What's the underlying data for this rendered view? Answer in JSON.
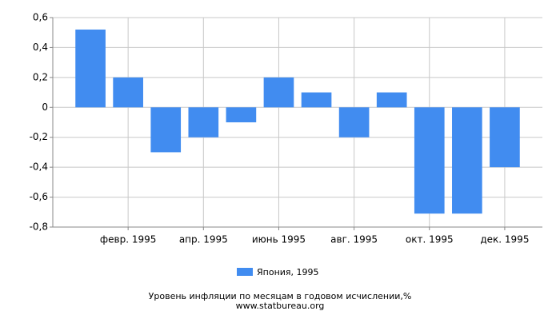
{
  "chart_data": {
    "type": "bar",
    "title": "Уровень инфляции по месяцам в годовом исчислении,%",
    "source": "www.statbureau.org",
    "categories": [
      null,
      "февр. 1995",
      null,
      "апр. 1995",
      null,
      "июнь 1995",
      null,
      "авг. 1995",
      null,
      "окт. 1995",
      null,
      "дек. 1995"
    ],
    "series": [
      {
        "name": "Япония, 1995",
        "color": "#418cf0",
        "values": [
          0.52,
          0.2,
          -0.3,
          -0.2,
          -0.1,
          0.2,
          0.1,
          -0.2,
          0.1,
          -0.71,
          -0.71,
          -0.4
        ]
      }
    ],
    "ylim": [
      -0.8,
      0.6
    ],
    "yticks": [
      {
        "value": -0.8,
        "label": "-0,8"
      },
      {
        "value": -0.6,
        "label": "-0,6"
      },
      {
        "value": -0.4,
        "label": "-0,4"
      },
      {
        "value": -0.2,
        "label": "-0,2"
      },
      0,
      {
        "value": 0.2,
        "label": "0,2"
      },
      {
        "value": 0.4,
        "label": "0,4"
      },
      {
        "value": 0.6,
        "label": "0,6"
      }
    ],
    "grid": true
  }
}
